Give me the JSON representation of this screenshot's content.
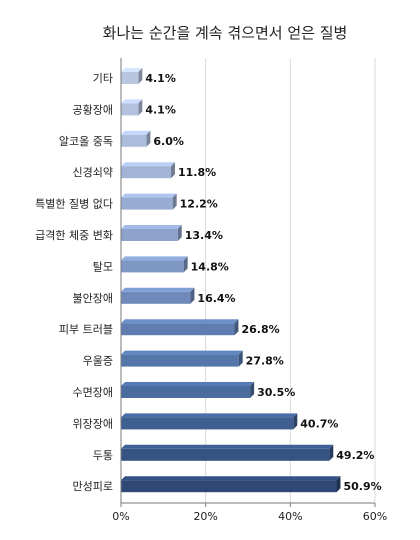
{
  "chart_data": {
    "type": "bar",
    "orientation": "horizontal",
    "title": "화나는 순간을 계속 겪으면서 얻은 질병",
    "categories": [
      "기타",
      "공황장애",
      "알코올 중독",
      "신경쇠약",
      "특별한 질병 없다",
      "급격한 체중 변화",
      "탈모",
      "불안장애",
      "피부 트러블",
      "우울증",
      "수면장애",
      "위장장애",
      "두통",
      "만성피로"
    ],
    "values": [
      4.1,
      4.1,
      6.0,
      11.8,
      12.2,
      13.4,
      14.8,
      16.4,
      26.8,
      27.8,
      30.5,
      40.7,
      49.2,
      50.9
    ],
    "value_labels": [
      "4.1%",
      "4.1%",
      "6.0%",
      "11.8%",
      "12.2%",
      "13.4%",
      "14.8%",
      "16.4%",
      "26.8%",
      "27.8%",
      "30.5%",
      "40.7%",
      "49.2%",
      "50.9%"
    ],
    "xlim": [
      0,
      60
    ],
    "xticks": [
      "0%",
      "20%",
      "40%",
      "60%"
    ],
    "xtick_values": [
      0,
      20,
      40,
      60
    ],
    "grid": true,
    "legend": "none",
    "colors": [
      "#b9c6e0",
      "#b3c1de",
      "#acbcdb",
      "#a2b4d6",
      "#98abd1",
      "#8ea3cc",
      "#7f97c4",
      "#6f8aba",
      "#5f7db0",
      "#5476a8",
      "#4a6c9f",
      "#405f91",
      "#365383",
      "#2e4774"
    ]
  }
}
